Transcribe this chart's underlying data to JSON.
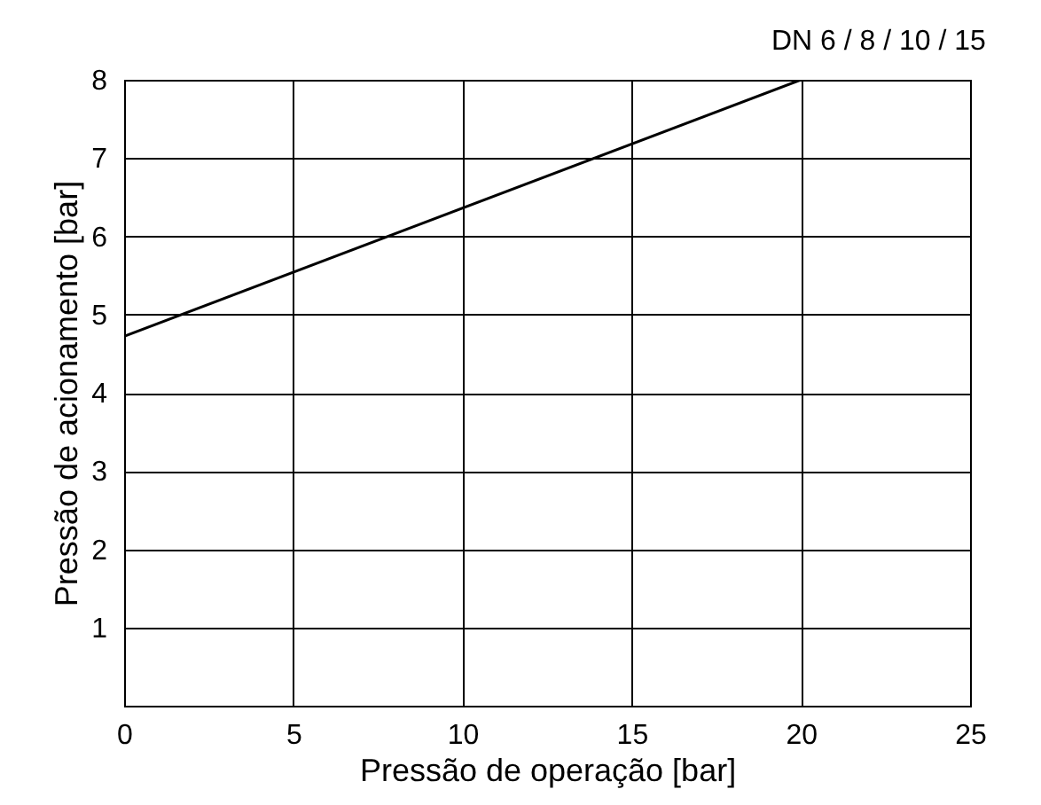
{
  "chart_data": {
    "type": "line",
    "title": "DN 6 / 8 / 10 / 15",
    "xlabel": "Pressão de operação [bar]",
    "ylabel": "Pressão de acionamento [bar]",
    "x": [
      0,
      20
    ],
    "series": [
      {
        "color": "#000000",
        "values": [
          4.72,
          8
        ]
      }
    ],
    "xlim": [
      0,
      25
    ],
    "xticks": [
      0,
      5,
      10,
      15,
      20,
      25
    ],
    "ylim": [
      0,
      8
    ],
    "yticks": [
      1,
      2,
      3,
      4,
      5,
      6,
      7,
      8
    ],
    "grid": true,
    "legend": false,
    "marker": "none",
    "line_style": "solid"
  }
}
